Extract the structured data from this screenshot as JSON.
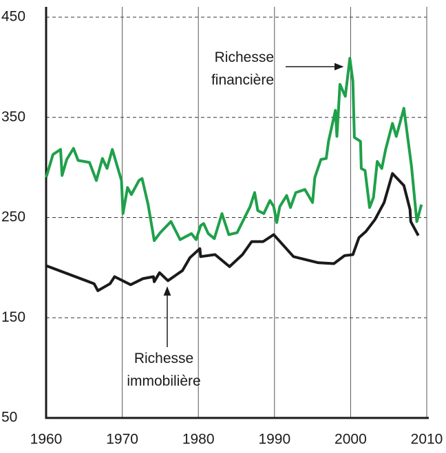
{
  "chart_data": {
    "type": "line",
    "xlim": [
      1960,
      2010
    ],
    "xticks": [
      1960,
      1970,
      1980,
      1990,
      2000,
      2010
    ],
    "ylim": [
      50,
      450
    ],
    "yticks": [
      50,
      150,
      250,
      350,
      450
    ],
    "grid": true,
    "series": [
      {
        "name": "Richesse financière",
        "color": "#1fa04a",
        "x": [
          1960.0,
          1960.9,
          1961.9,
          1962.1,
          1962.7,
          1963.6,
          1964.2,
          1965.7,
          1966.6,
          1967.4,
          1968.0,
          1968.7,
          1969.9,
          1970.1,
          1970.7,
          1971.2,
          1972.2,
          1972.6,
          1973.4,
          1974.2,
          1975.0,
          1976.4,
          1977.6,
          1979.1,
          1979.7,
          1980.3,
          1980.7,
          1981.3,
          1982.1,
          1983.1,
          1984.0,
          1985.1,
          1986.2,
          1986.8,
          1987.4,
          1987.8,
          1988.6,
          1989.4,
          1989.9,
          1990.3,
          1990.7,
          1991.6,
          1992.1,
          1992.8,
          1994.0,
          1995.0,
          1995.3,
          1996.1,
          1996.8,
          1997.1,
          1998.0,
          1998.2,
          1998.6,
          1999.3,
          1999.9,
          2000.3,
          2000.5,
          2001.3,
          2001.4,
          2001.9,
          2002.5,
          2003.0,
          2003.5,
          2004.1,
          2004.6,
          2005.5,
          2006.0,
          2007.0,
          2008.0,
          2008.7,
          2009.3
        ],
        "values": [
          290,
          313,
          318,
          292,
          308,
          319,
          307,
          305,
          287,
          309,
          299,
          318,
          287,
          254,
          280,
          273,
          287,
          289,
          263,
          227,
          235,
          246,
          228,
          234,
          228,
          242,
          244,
          234,
          229,
          254,
          233,
          235,
          252,
          261,
          275,
          257,
          254,
          267,
          261,
          245,
          261,
          272,
          260,
          275,
          278,
          265,
          290,
          308,
          309,
          326,
          357,
          331,
          383,
          371,
          409,
          386,
          330,
          326,
          299,
          297,
          260,
          270,
          306,
          299,
          318,
          344,
          331,
          359,
          301,
          246,
          263
        ]
      },
      {
        "name": "Richesse immobilière",
        "color": "#1a1a1a",
        "x": [
          1960.0,
          1966.3,
          1966.8,
          1968.4,
          1969.0,
          1971.1,
          1972.7,
          1974.1,
          1974.2,
          1974.9,
          1976.0,
          1977.9,
          1978.9,
          1980.2,
          1980.3,
          1982.2,
          1984.1,
          1985.8,
          1987.0,
          1988.5,
          1989.9,
          1992.5,
          1995.7,
          1997.8,
          1999.2,
          2000.3,
          2001.1,
          2002.0,
          2003.2,
          2004.4,
          2005.5,
          2007.0,
          2007.8,
          2007.9,
          2008.9
        ],
        "values": [
          202,
          184,
          177,
          184,
          191,
          183,
          189,
          191,
          186,
          195,
          187,
          197,
          210,
          219,
          211,
          213,
          201,
          213,
          226,
          226,
          233,
          211,
          205,
          204,
          212,
          213,
          230,
          236,
          248,
          265,
          294,
          282,
          258,
          246,
          232
        ]
      }
    ]
  }
}
